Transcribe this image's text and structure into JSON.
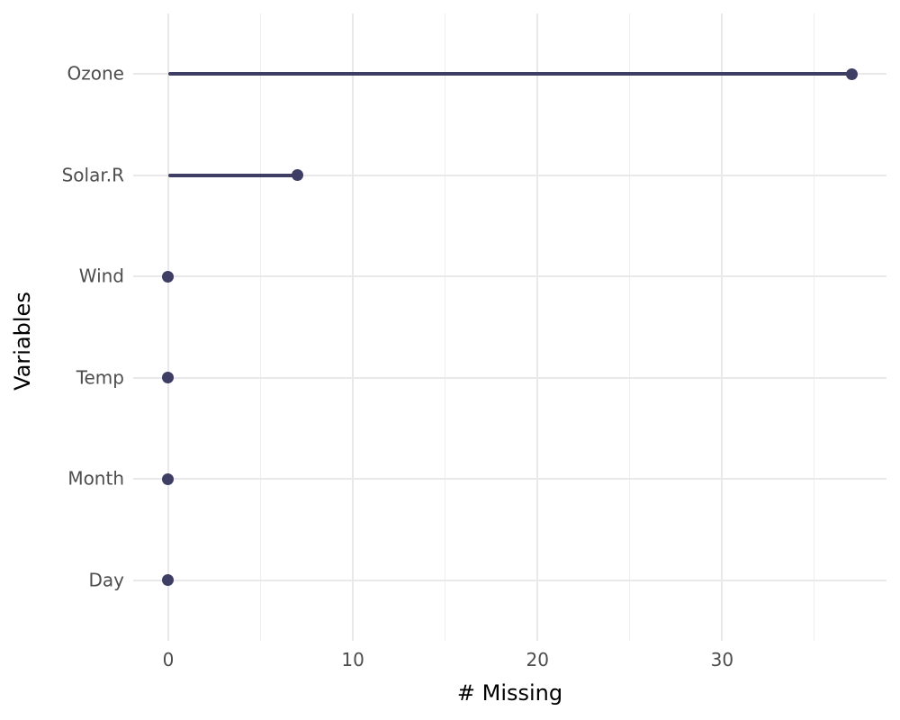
{
  "chart_data": {
    "type": "lollipop",
    "orientation": "horizontal",
    "title": "",
    "xlabel": "# Missing",
    "ylabel": "Variables",
    "categories": [
      "Ozone",
      "Solar.R",
      "Wind",
      "Temp",
      "Month",
      "Day"
    ],
    "values": [
      37,
      7,
      0,
      0,
      0,
      0
    ],
    "x_major_ticks": [
      0,
      10,
      20,
      30
    ],
    "x_major_tick_labels": [
      "0",
      "10",
      "20",
      "30"
    ],
    "x_minor_ticks": [
      5,
      15,
      25,
      35
    ],
    "xlim": [
      -1.9,
      38.9
    ],
    "grid": "major-and-minor, no axis lines, no ticks, no legend",
    "legend": "none",
    "colors": {
      "series": "#3e3d63",
      "grid_major": "#e9e9e9",
      "grid_minor": "#eeeeee",
      "tick_label": "#4d4d4d",
      "axis_title": "#000000",
      "background": "#ffffff"
    }
  }
}
